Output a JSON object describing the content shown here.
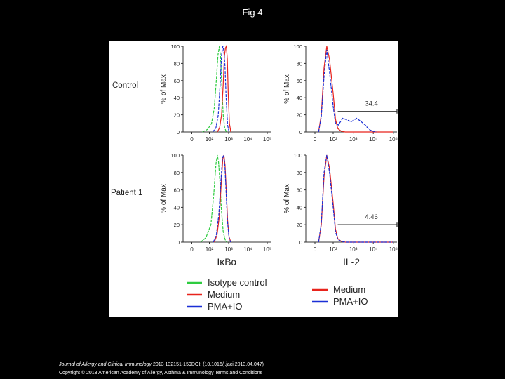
{
  "slide_title": "Fig 4",
  "footer": {
    "journal": "Journal of Allergy and Clinical Immunology",
    "citation": " 2013 132151-159DOI: (10.1016/j.jaci.2013.04.047)",
    "copyright": "Copyright © 2013 American Academy of Allergy, Asthma & Immunology",
    "terms_link": "Terms and Conditions"
  },
  "colors": {
    "isotype": "#2ecc40",
    "medium": "#e8231c",
    "pma_io": "#1a2fd6"
  },
  "chart_data": [
    {
      "type": "line",
      "row_label": "Control",
      "ylabel": "% of Max",
      "xlabel": "",
      "x_scale": "log",
      "x_ticks": [
        "0",
        "10²",
        "10³",
        "10⁴",
        "10⁵"
      ],
      "y_ticks": [
        "0",
        "20",
        "40",
        "60",
        "80",
        "100"
      ],
      "ylim": [
        0,
        100
      ],
      "series": [
        {
          "name": "Isotype control",
          "color": "#2ecc40",
          "x": [
            60,
            90,
            130,
            180,
            230,
            280,
            330,
            380,
            440,
            520,
            620,
            760
          ],
          "y": [
            0,
            3,
            10,
            28,
            60,
            90,
            100,
            88,
            55,
            20,
            5,
            0
          ]
        },
        {
          "name": "Medium",
          "color": "#e8231c",
          "x": [
            260,
            340,
            430,
            520,
            600,
            680,
            760,
            850,
            950,
            1100,
            1300
          ],
          "y": [
            0,
            5,
            20,
            55,
            88,
            98,
            100,
            85,
            45,
            10,
            0
          ]
        },
        {
          "name": "PMA+IO",
          "color": "#1a2fd6",
          "x": [
            150,
            220,
            290,
            360,
            430,
            500,
            560,
            640,
            740,
            880,
            1050
          ],
          "y": [
            0,
            5,
            20,
            55,
            90,
            100,
            95,
            78,
            40,
            8,
            0
          ]
        }
      ]
    },
    {
      "type": "line",
      "row_label": "Control",
      "ylabel": "% of Max",
      "xlabel": "",
      "x_scale": "log",
      "x_ticks": [
        "0",
        "10²",
        "10³",
        "10⁴",
        "10⁵"
      ],
      "y_ticks": [
        "0",
        "20",
        "40",
        "60",
        "80",
        "100"
      ],
      "ylim": [
        0,
        100
      ],
      "gate_value": "34.4",
      "series": [
        {
          "name": "Medium",
          "color": "#e8231c",
          "x": [
            20,
            35,
            50,
            65,
            80,
            100,
            130,
            170,
            250,
            400,
            1000,
            100000
          ],
          "y": [
            0,
            20,
            75,
            100,
            85,
            45,
            15,
            4,
            1,
            0,
            0,
            0
          ]
        },
        {
          "name": "PMA+IO",
          "color": "#1a2fd6",
          "x": [
            20,
            35,
            50,
            65,
            80,
            100,
            130,
            180,
            300,
            500,
            800,
            1500,
            2500,
            4000,
            6000,
            9000,
            15000
          ],
          "y": [
            0,
            18,
            65,
            96,
            70,
            30,
            10,
            8,
            16,
            14,
            12,
            16,
            12,
            8,
            3,
            1,
            0
          ]
        }
      ]
    },
    {
      "type": "line",
      "row_label": "Patient 1",
      "ylabel": "% of Max",
      "xlabel": "IκBα",
      "x_scale": "log",
      "x_ticks": [
        "0",
        "10²",
        "10³",
        "10⁴",
        "10⁵"
      ],
      "y_ticks": [
        "0",
        "20",
        "40",
        "60",
        "80",
        "100"
      ],
      "ylim": [
        0,
        100
      ],
      "series": [
        {
          "name": "Isotype control",
          "color": "#2ecc40",
          "x": [
            50,
            80,
            120,
            170,
            220,
            260,
            300,
            350,
            420,
            520,
            650,
            800
          ],
          "y": [
            0,
            5,
            20,
            55,
            90,
            100,
            92,
            70,
            38,
            12,
            3,
            0
          ]
        },
        {
          "name": "Medium",
          "color": "#e8231c",
          "x": [
            180,
            250,
            330,
            420,
            500,
            570,
            650,
            750,
            880,
            1050,
            1300
          ],
          "y": [
            0,
            8,
            30,
            70,
            96,
            100,
            88,
            60,
            25,
            6,
            0
          ]
        },
        {
          "name": "PMA+IO",
          "color": "#1a2fd6",
          "x": [
            160,
            230,
            310,
            400,
            480,
            550,
            630,
            730,
            860,
            1030,
            1250
          ],
          "y": [
            0,
            8,
            32,
            72,
            97,
            100,
            90,
            60,
            25,
            6,
            0
          ]
        }
      ]
    },
    {
      "type": "line",
      "row_label": "Patient 1",
      "ylabel": "% of Max",
      "xlabel": "IL-2",
      "x_scale": "log",
      "x_ticks": [
        "0",
        "10²",
        "10³",
        "10⁴",
        "10⁵"
      ],
      "y_ticks": [
        "0",
        "20",
        "40",
        "60",
        "80",
        "100"
      ],
      "ylim": [
        0,
        100
      ],
      "gate_value": "4.46",
      "series": [
        {
          "name": "Medium",
          "color": "#e8231c",
          "x": [
            20,
            35,
            50,
            65,
            80,
            100,
            130,
            170,
            250,
            400,
            1000,
            100000
          ],
          "y": [
            0,
            20,
            75,
            100,
            85,
            45,
            15,
            4,
            1,
            0,
            0,
            0
          ]
        },
        {
          "name": "PMA+IO",
          "color": "#1a2fd6",
          "x": [
            20,
            35,
            50,
            65,
            80,
            100,
            130,
            170,
            250,
            400,
            1000,
            100000
          ],
          "y": [
            0,
            22,
            80,
            100,
            80,
            40,
            12,
            3,
            1,
            0,
            0,
            0
          ]
        }
      ]
    }
  ],
  "legends": {
    "left": [
      {
        "label": "Isotype control",
        "color": "#2ecc40"
      },
      {
        "label": "Medium",
        "color": "#e8231c"
      },
      {
        "label": "PMA+IO",
        "color": "#1a2fd6"
      }
    ],
    "right": [
      {
        "label": "Medium",
        "color": "#e8231c"
      },
      {
        "label": "PMA+IO",
        "color": "#1a2fd6"
      }
    ]
  }
}
